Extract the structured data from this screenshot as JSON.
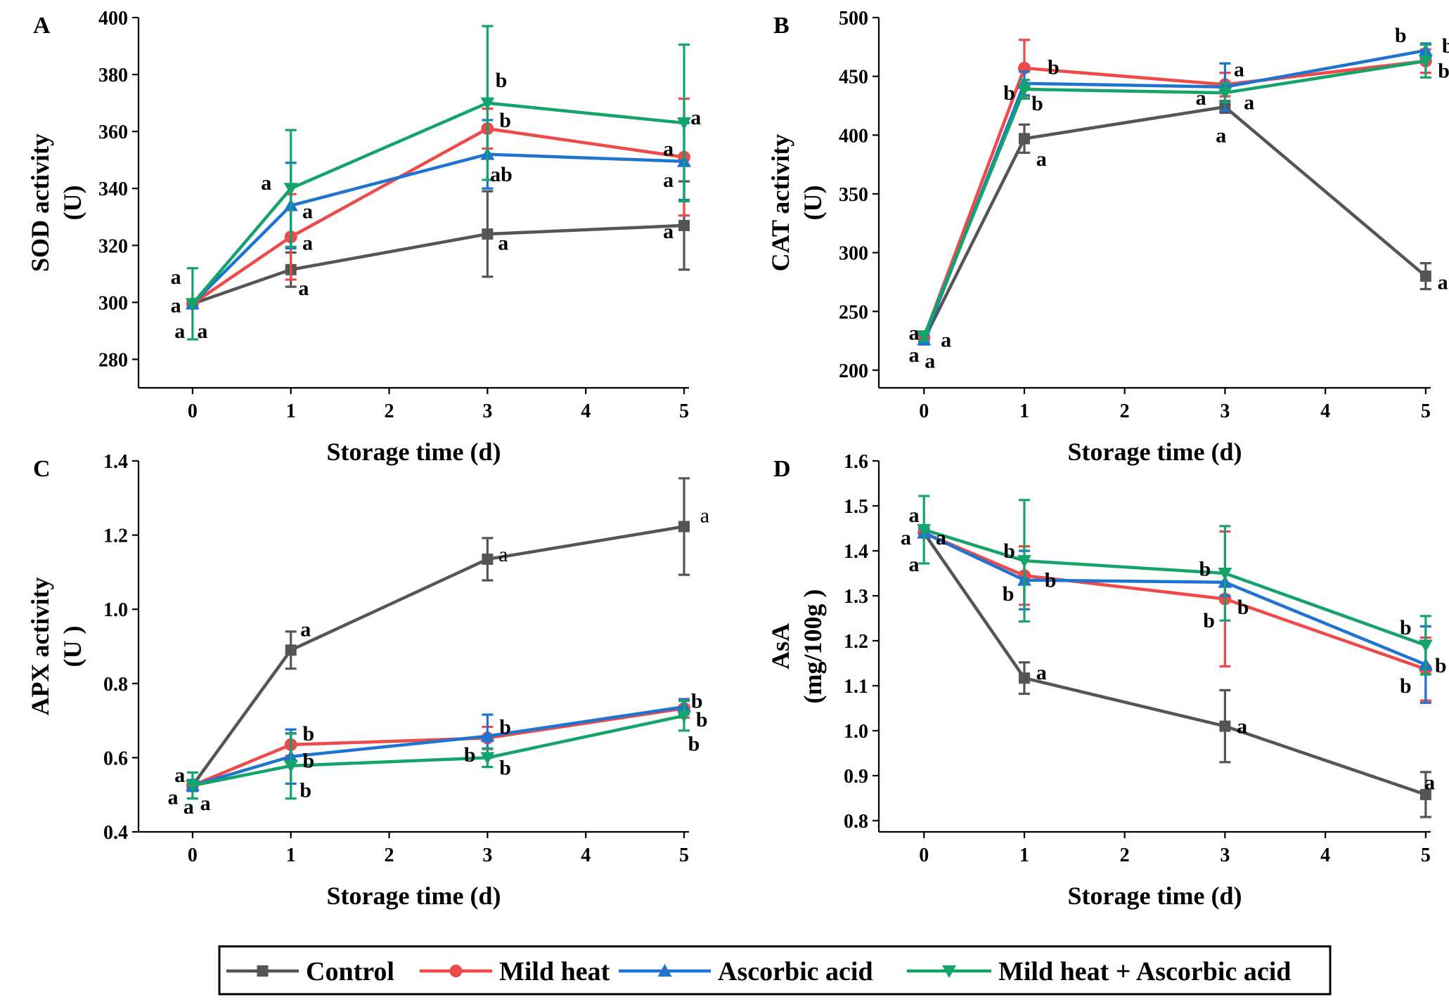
{
  "series_meta": [
    {
      "name": "Control",
      "color": "#555555",
      "marker": "square"
    },
    {
      "name": "Mild heat",
      "color": "#ef4a4a",
      "marker": "circle"
    },
    {
      "name": "Ascorbic acid",
      "color": "#1f73d1",
      "marker": "triangle-up"
    },
    {
      "name": "Mild heat + Ascorbic acid",
      "color": "#14a36a",
      "marker": "triangle-down"
    }
  ],
  "chart_data": [
    {
      "panel": "A",
      "type": "line",
      "xlabel": "Storage time (d)",
      "ylabel": [
        "SOD activity",
        "(U)"
      ],
      "xlim": [
        -0.55,
        5.05
      ],
      "xticks": [
        0,
        1,
        2,
        3,
        4,
        5
      ],
      "ylim": [
        270,
        400
      ],
      "yticks": [
        280,
        300,
        320,
        340,
        360,
        380,
        400
      ],
      "x": [
        0,
        1,
        3,
        5
      ],
      "series": [
        {
          "name": "Control",
          "values": [
            299.5,
            311.5,
            324,
            327
          ],
          "errors": [
            0,
            6,
            15,
            15.5
          ]
        },
        {
          "name": "Mild heat",
          "values": [
            299.5,
            323,
            361,
            351
          ],
          "errors": [
            0,
            15,
            7,
            20.5
          ]
        },
        {
          "name": "Ascorbic acid",
          "values": [
            299.5,
            334,
            352,
            349.5
          ],
          "errors": [
            0,
            15,
            12,
            13.5
          ]
        },
        {
          "name": "Mild heat + Ascorbic acid",
          "values": [
            299.5,
            340,
            370,
            363
          ],
          "errors": [
            12.5,
            20.5,
            27,
            27.5
          ]
        }
      ],
      "annotations": [
        {
          "text": "a",
          "x": -0.17,
          "y": 309
        },
        {
          "text": "a",
          "x": -0.17,
          "y": 299
        },
        {
          "text": "a",
          "x": -0.13,
          "y": 290
        },
        {
          "text": "a",
          "x": 0.1,
          "y": 290
        },
        {
          "text": "a",
          "x": 0.75,
          "y": 342
        },
        {
          "text": "a",
          "x": 1.17,
          "y": 332
        },
        {
          "text": "a",
          "x": 1.17,
          "y": 321
        },
        {
          "text": "a",
          "x": 1.13,
          "y": 305
        },
        {
          "text": "b",
          "x": 3.14,
          "y": 378
        },
        {
          "text": "b",
          "x": 3.18,
          "y": 364
        },
        {
          "text": "ab",
          "x": 3.14,
          "y": 345
        },
        {
          "text": "a",
          "x": 3.16,
          "y": 321
        },
        {
          "text": "a",
          "x": 5.12,
          "y": 365
        },
        {
          "text": "a",
          "x": 4.84,
          "y": 354
        },
        {
          "text": "a",
          "x": 4.84,
          "y": 343
        },
        {
          "text": "a",
          "x": 4.84,
          "y": 325
        }
      ]
    },
    {
      "panel": "B",
      "type": "line",
      "xlabel": "Storage time (d)",
      "ylabel": [
        "CAT activity",
        "(U)"
      ],
      "xlim": [
        -0.45,
        5.05
      ],
      "xticks": [
        0,
        1,
        2,
        3,
        4,
        5
      ],
      "ylim": [
        185,
        500
      ],
      "yticks": [
        200,
        250,
        300,
        350,
        400,
        450,
        500
      ],
      "x": [
        0,
        1,
        3,
        5
      ],
      "series": [
        {
          "name": "Control",
          "values": [
            226,
            397,
            424,
            280
          ],
          "errors": [
            4,
            12,
            5,
            11
          ]
        },
        {
          "name": "Mild heat",
          "values": [
            228,
            457,
            443,
            463
          ],
          "errors": [
            4,
            24,
            10,
            10
          ]
        },
        {
          "name": "Ascorbic acid",
          "values": [
            226,
            444,
            441,
            472
          ],
          "errors": [
            4,
            10,
            20,
            6
          ]
        },
        {
          "name": "Mild heat + Ascorbic acid",
          "values": [
            229,
            439,
            436,
            463
          ],
          "errors": [
            4,
            8,
            8,
            14
          ]
        }
      ],
      "annotations": [
        {
          "text": "a",
          "x": -0.1,
          "y": 232
        },
        {
          "text": "a",
          "x": 0.22,
          "y": 226
        },
        {
          "text": "a",
          "x": -0.1,
          "y": 213
        },
        {
          "text": "a",
          "x": 0.06,
          "y": 208
        },
        {
          "text": "b",
          "x": 1.29,
          "y": 458
        },
        {
          "text": "b",
          "x": 0.85,
          "y": 436
        },
        {
          "text": "b",
          "x": 1.13,
          "y": 427
        },
        {
          "text": "a",
          "x": 1.17,
          "y": 380
        },
        {
          "text": "a",
          "x": 3.14,
          "y": 456
        },
        {
          "text": "a",
          "x": 2.76,
          "y": 432
        },
        {
          "text": "a",
          "x": 3.24,
          "y": 428
        },
        {
          "text": "a",
          "x": 2.96,
          "y": 400
        },
        {
          "text": "b",
          "x": 4.75,
          "y": 485
        },
        {
          "text": "b",
          "x": 5.22,
          "y": 476
        },
        {
          "text": "b",
          "x": 5.18,
          "y": 455
        },
        {
          "text": "a",
          "x": 5.17,
          "y": 275
        }
      ]
    },
    {
      "panel": "C",
      "type": "line",
      "xlabel": "Storage time (d)",
      "ylabel": [
        "APX activity",
        "(U )"
      ],
      "xlim": [
        -0.55,
        5.05
      ],
      "xticks": [
        0,
        1,
        2,
        3,
        4,
        5
      ],
      "ylim": [
        0.4,
        1.4
      ],
      "yticks": [
        0.4,
        0.6,
        0.8,
        1.0,
        1.2,
        1.4
      ],
      "x": [
        0,
        1,
        3,
        5
      ],
      "series": [
        {
          "name": "Control",
          "values": [
            0.525,
            0.89,
            1.135,
            1.223
          ],
          "errors": [
            0.015,
            0.05,
            0.057,
            0.13
          ]
        },
        {
          "name": "Mild heat",
          "values": [
            0.525,
            0.635,
            0.653,
            0.733
          ],
          "errors": [
            0.015,
            0.03,
            0.03,
            0.025
          ]
        },
        {
          "name": "Ascorbic acid",
          "values": [
            0.525,
            0.603,
            0.658,
            0.737
          ],
          "errors": [
            0.015,
            0.073,
            0.058,
            0.02
          ]
        },
        {
          "name": "Mild heat + Ascorbic acid",
          "values": [
            0.525,
            0.578,
            0.6,
            0.713
          ],
          "errors": [
            0.035,
            0.088,
            0.025,
            0.04
          ]
        }
      ],
      "annotations": [
        {
          "text": "a",
          "x": -0.13,
          "y": 0.553
        },
        {
          "text": "a",
          "x": -0.2,
          "y": 0.494
        },
        {
          "text": "a",
          "x": -0.04,
          "y": 0.468
        },
        {
          "text": "a",
          "x": 0.13,
          "y": 0.478
        },
        {
          "text": "a",
          "x": 1.15,
          "y": 0.946,
          "bold": true
        },
        {
          "text": "b",
          "x": 1.18,
          "y": 0.665
        },
        {
          "text": "b",
          "x": 1.18,
          "y": 0.592
        },
        {
          "text": "b",
          "x": 1.15,
          "y": 0.513
        },
        {
          "text": "a",
          "x": 3.16,
          "y": 1.148,
          "bold": false
        },
        {
          "text": "b",
          "x": 3.18,
          "y": 0.683
        },
        {
          "text": "b",
          "x": 2.82,
          "y": 0.608
        },
        {
          "text": "b",
          "x": 3.18,
          "y": 0.573
        },
        {
          "text": "a",
          "x": 5.21,
          "y": 1.253,
          "bold": false
        },
        {
          "text": "b",
          "x": 5.13,
          "y": 0.753
        },
        {
          "text": "b",
          "x": 5.18,
          "y": 0.703
        },
        {
          "text": "b",
          "x": 5.1,
          "y": 0.638
        }
      ]
    },
    {
      "panel": "D",
      "type": "line",
      "xlabel": "Storage time (d)",
      "ylabel": [
        "AsA",
        "(mg/100g )"
      ],
      "xlim": [
        -0.45,
        5.05
      ],
      "xticks": [
        0,
        1,
        2,
        3,
        4,
        5
      ],
      "ylim": [
        0.775,
        1.6
      ],
      "yticks": [
        0.8,
        0.9,
        1.0,
        1.1,
        1.2,
        1.3,
        1.4,
        1.5,
        1.6
      ],
      "x": [
        0,
        1,
        3,
        5
      ],
      "series": [
        {
          "name": "Control",
          "values": [
            1.44,
            1.117,
            1.01,
            0.858
          ],
          "errors": [
            0.01,
            0.035,
            0.08,
            0.05
          ]
        },
        {
          "name": "Mild heat",
          "values": [
            1.44,
            1.345,
            1.293,
            1.137
          ],
          "errors": [
            0.01,
            0.065,
            0.15,
            0.07
          ]
        },
        {
          "name": "Ascorbic acid",
          "values": [
            1.44,
            1.335,
            1.33,
            1.147
          ],
          "errors": [
            0.01,
            0.065,
            0.03,
            0.085
          ]
        },
        {
          "name": "Mild heat + Ascorbic acid",
          "values": [
            1.447,
            1.378,
            1.35,
            1.19
          ],
          "errors": [
            0.075,
            0.135,
            0.105,
            0.065
          ]
        }
      ],
      "annotations": [
        {
          "text": "a",
          "x": -0.1,
          "y": 1.48
        },
        {
          "text": "a",
          "x": -0.18,
          "y": 1.43
        },
        {
          "text": "a",
          "x": 0.17,
          "y": 1.43
        },
        {
          "text": "a",
          "x": -0.1,
          "y": 1.37
        },
        {
          "text": "b",
          "x": 0.85,
          "y": 1.4
        },
        {
          "text": "b",
          "x": 1.26,
          "y": 1.335
        },
        {
          "text": "b",
          "x": 0.84,
          "y": 1.305
        },
        {
          "text": "a",
          "x": 1.17,
          "y": 1.13
        },
        {
          "text": "b",
          "x": 2.8,
          "y": 1.36
        },
        {
          "text": "b",
          "x": 3.18,
          "y": 1.275
        },
        {
          "text": "b",
          "x": 2.84,
          "y": 1.245
        },
        {
          "text": "a",
          "x": 3.17,
          "y": 1.01
        },
        {
          "text": "b",
          "x": 4.8,
          "y": 1.23
        },
        {
          "text": "b",
          "x": 5.15,
          "y": 1.145
        },
        {
          "text": "b",
          "x": 4.8,
          "y": 1.1
        },
        {
          "text": "a",
          "x": 5.04,
          "y": 0.885
        }
      ]
    }
  ]
}
